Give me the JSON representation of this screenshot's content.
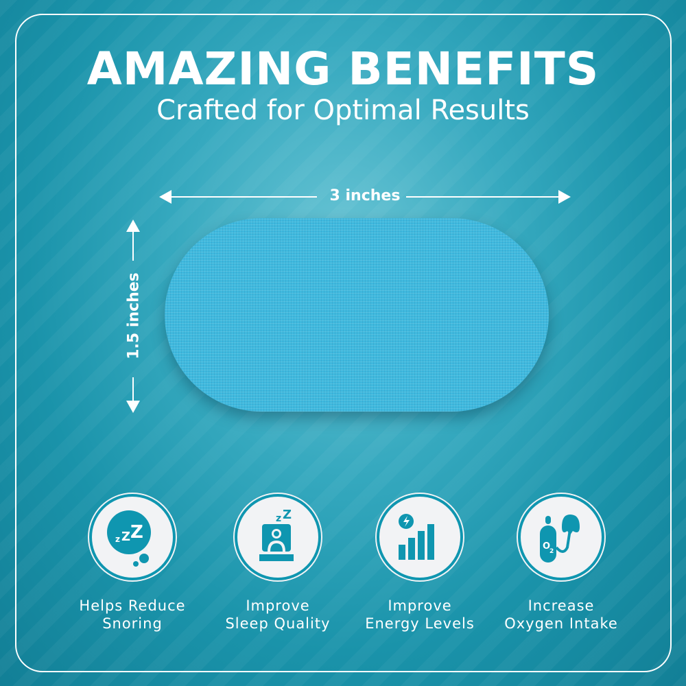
{
  "header": {
    "title": "AMAZING BENEFITS",
    "subtitle": "Crafted for Optimal Results"
  },
  "dimensions": {
    "width": "3 inches",
    "height": "1.5 inches"
  },
  "colors": {
    "background": "#1a93aa",
    "patch": "#3fb9de",
    "icon": "#0f96b0",
    "circle": "#f2f3f5"
  },
  "benefits": [
    {
      "icon": "sleep-bubble-icon",
      "line1": "Helps Reduce",
      "line2": "Snoring"
    },
    {
      "icon": "sleeping-person-icon",
      "line1": "Improve",
      "line2": "Sleep Quality"
    },
    {
      "icon": "energy-bars-icon",
      "line1": "Improve",
      "line2": "Energy Levels"
    },
    {
      "icon": "oxygen-tank-icon",
      "line1": "Increase",
      "line2": "Oxygen Intake"
    }
  ]
}
